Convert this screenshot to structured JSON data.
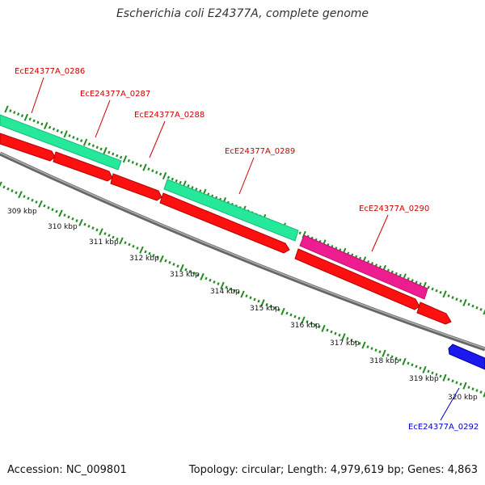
{
  "title": "Escherichia coli E24377A, complete genome",
  "footer": {
    "accession": "Accession: NC_009801",
    "summary": "Topology: circular; Length: 4,979,619 bp; Genes: 4,863"
  },
  "colors": {
    "backbone": "#808080",
    "tick": "#228b22",
    "cds_forward": "#ff1010",
    "rna_teal": "#25e89a",
    "rna_magenta": "#ee1d8f",
    "cds_reverse": "#1a1aee",
    "label_red": "#cc0000",
    "label_blue": "#0000cc"
  },
  "kbp_ticks": [
    "309 kbp",
    "310 kbp",
    "311 kbp",
    "312 kbp",
    "313 kbp",
    "314 kbp",
    "315 kbp",
    "316 kbp",
    "317 kbp",
    "318 kbp",
    "319 kbp",
    "320 kbp"
  ],
  "gene_labels": [
    {
      "text": "EcE24377A_0286",
      "color": "red"
    },
    {
      "text": "EcE24377A_0287",
      "color": "red"
    },
    {
      "text": "EcE24377A_0288",
      "color": "red"
    },
    {
      "text": "EcE24377A_0289",
      "color": "red"
    },
    {
      "text": "EcE24377A_0290",
      "color": "red"
    },
    {
      "text": "EcE24377A_0292",
      "color": "blue"
    }
  ]
}
